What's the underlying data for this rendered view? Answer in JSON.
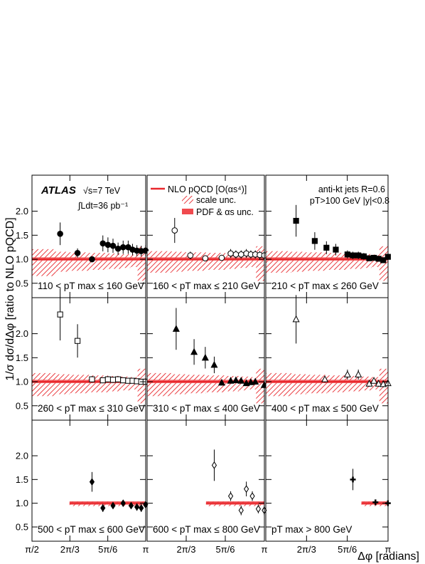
{
  "figure": {
    "ylabel": "1/σ dσ/dΔφ [ratio to NLO pQCD]",
    "xlabel": "Δφ [radians]",
    "x_ticks": [
      "π/2",
      "2π/3",
      "5π/6",
      "π"
    ],
    "y_ticks": [
      "0.5",
      "1.0",
      "1.5",
      "2.0"
    ],
    "atlas": "ATLAS",
    "energy": "√s=7 TeV",
    "lumi": "∫Ldt=36 pb⁻¹",
    "legend": {
      "nlo": "NLO pQCD [O(αs⁴)]",
      "scale": "scale unc.",
      "pdf": "PDF & αs unc."
    },
    "info_line1": "anti-kt jets R=0.6",
    "info_line2": "pT>100 GeV |y|<0.8",
    "colors": {
      "theory": "#e8272c",
      "band": "#f04a4e"
    }
  },
  "chart_data": [
    {
      "type": "scatter",
      "label": "110 < pT max ≤ 160 GeV",
      "marker": "filled-circle",
      "x": [
        1.96,
        2.2,
        2.4,
        2.55,
        2.62,
        2.69,
        2.76,
        2.83,
        2.9,
        2.96,
        3.02,
        3.08,
        3.14
      ],
      "y": [
        1.53,
        1.13,
        1.0,
        1.33,
        1.3,
        1.28,
        1.22,
        1.25,
        1.25,
        1.2,
        1.18,
        1.17,
        1.18
      ]
    },
    {
      "type": "scatter",
      "label": "160 < pT max ≤ 210 GeV",
      "marker": "open-circle",
      "x": [
        1.94,
        2.15,
        2.35,
        2.57,
        2.69,
        2.76,
        2.83,
        2.9,
        2.96,
        3.02,
        3.08,
        3.14
      ],
      "y": [
        1.6,
        1.08,
        1.02,
        1.03,
        1.12,
        1.1,
        1.1,
        1.12,
        1.1,
        1.1,
        1.09,
        1.08
      ]
    },
    {
      "type": "scatter",
      "label": "210 < pT max ≤ 260 GeV",
      "marker": "filled-square",
      "x": [
        1.96,
        2.2,
        2.35,
        2.47,
        2.62,
        2.69,
        2.76,
        2.83,
        2.9,
        2.96,
        3.02,
        3.08,
        3.14
      ],
      "y": [
        1.8,
        1.38,
        1.24,
        1.2,
        1.1,
        1.08,
        1.08,
        1.06,
        1.02,
        1.03,
        1.01,
        0.98,
        1.05
      ]
    },
    {
      "type": "scatter",
      "label": "260 < pT max ≤ 310 GeV",
      "marker": "open-square",
      "x": [
        1.96,
        2.2,
        2.4,
        2.55,
        2.62,
        2.69,
        2.76,
        2.83,
        2.9,
        2.96,
        3.02,
        3.08,
        3.14
      ],
      "y": [
        2.4,
        1.85,
        1.05,
        1.03,
        1.05,
        1.04,
        1.05,
        1.03,
        1.02,
        1.02,
        1.01,
        1.0,
        1.0
      ]
    },
    {
      "type": "scatter",
      "label": "310 < pT max ≤ 400 GeV",
      "marker": "filled-triangle",
      "x": [
        1.96,
        2.2,
        2.35,
        2.47,
        2.57,
        2.69,
        2.76,
        2.83,
        2.9,
        2.96,
        3.02,
        3.14
      ],
      "y": [
        2.1,
        1.62,
        1.5,
        1.35,
        0.98,
        1.02,
        1.03,
        1.02,
        0.97,
        0.99,
        1.0,
        0.93
      ]
    },
    {
      "type": "scatter",
      "label": "400 < pT max ≤ 500 GeV",
      "marker": "open-triangle",
      "x": [
        1.96,
        2.33,
        2.62,
        2.76,
        2.9,
        2.96,
        3.02,
        3.08,
        3.14
      ],
      "y": [
        2.3,
        1.05,
        1.15,
        1.15,
        0.96,
        1.02,
        0.96,
        0.95,
        0.97
      ]
    },
    {
      "type": "scatter",
      "label": "500 < pT max ≤ 600 GeV",
      "marker": "filled-diamond",
      "x": [
        2.4,
        2.55,
        2.69,
        2.83,
        2.94,
        3.02,
        3.08,
        3.14
      ],
      "y": [
        1.45,
        0.9,
        0.95,
        1.0,
        0.95,
        0.92,
        0.9,
        0.97
      ]
    },
    {
      "type": "scatter",
      "label": "600 < pT max ≤ 800 GeV",
      "marker": "open-diamond",
      "x": [
        2.47,
        2.69,
        2.83,
        2.9,
        2.98,
        3.06,
        3.14
      ],
      "y": [
        1.8,
        1.15,
        0.85,
        1.3,
        1.15,
        0.88,
        0.85
      ]
    },
    {
      "type": "scatter",
      "label": "pT max > 800 GeV",
      "marker": "filled-cross",
      "x": [
        2.69,
        2.98,
        3.14
      ],
      "y": [
        1.5,
        1.02,
        1.0
      ]
    }
  ]
}
